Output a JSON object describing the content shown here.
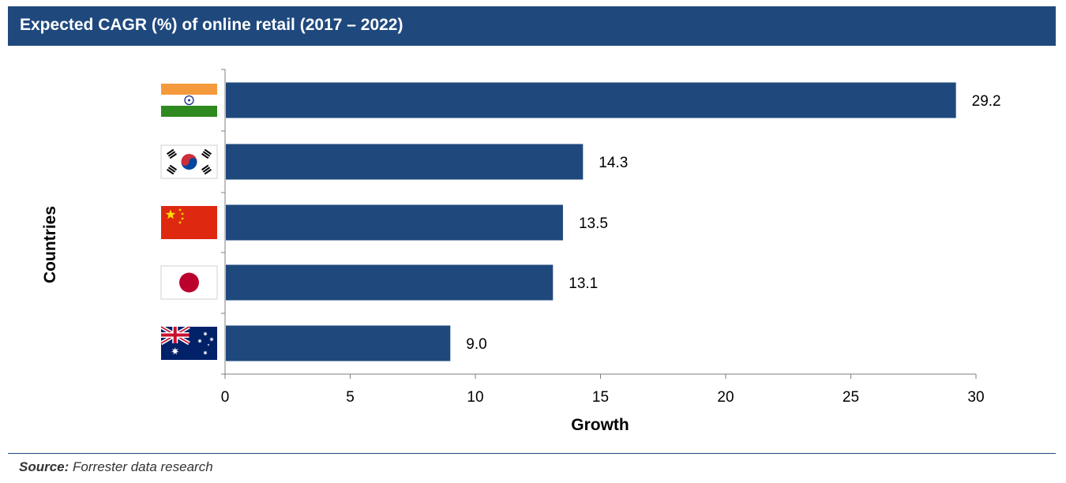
{
  "title": "Expected CAGR (%) of online retail (2017 – 2022)",
  "source": {
    "label": "Source:",
    "text": "Forrester data research"
  },
  "colors": {
    "bar": "#1f497d",
    "header": "#1f497d",
    "axis": "#7f7f7f"
  },
  "chart_data": {
    "type": "bar",
    "orientation": "horizontal",
    "categories": [
      "India",
      "South Korea",
      "China",
      "Japan",
      "Australia"
    ],
    "category_icons": [
      "india-flag-icon",
      "south-korea-flag-icon",
      "china-flag-icon",
      "japan-flag-icon",
      "australia-flag-icon"
    ],
    "values": [
      29.2,
      14.3,
      13.5,
      13.1,
      9.0
    ],
    "value_labels": [
      "29.2",
      "14.3",
      "13.5",
      "13.1",
      "9.0"
    ],
    "xlabel": "Growth",
    "ylabel": "Countries",
    "xlim": [
      0,
      30
    ],
    "xticks": [
      "0",
      "5",
      "10",
      "15",
      "20",
      "25",
      "30"
    ],
    "grid": false,
    "legend": "none"
  }
}
